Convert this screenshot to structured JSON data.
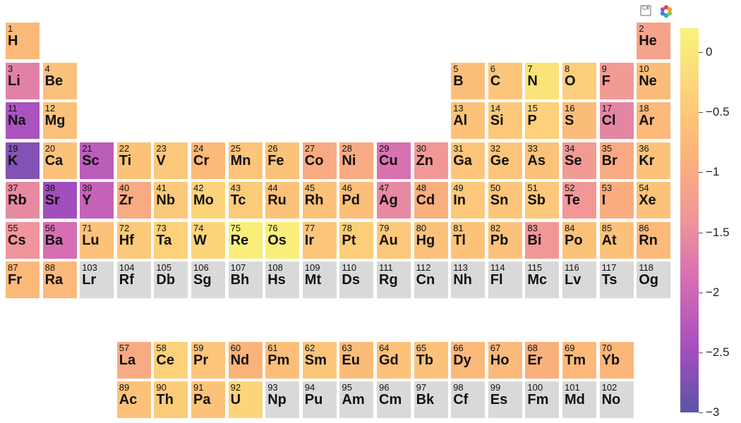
{
  "toolbar": {
    "save_icon": "save-icon",
    "logo_icon": "bokeh-logo-icon"
  },
  "chart_data": {
    "type": "heatmap",
    "title": "",
    "colorbar": {
      "min": -3,
      "max": 0.2,
      "ticks": [
        "0",
        "−0.5",
        "−1",
        "−1.5",
        "−2",
        "−2.5",
        "−3"
      ],
      "tick_values": [
        0,
        -0.5,
        -1,
        -1.5,
        -2,
        -2.5,
        -3
      ],
      "colormap": [
        "#5c53a5",
        "#a44fbf",
        "#d36bb5",
        "#f0959a",
        "#fbb27a",
        "#fcd27a",
        "#f8f47a"
      ]
    },
    "missing_color": "#d9d9d9",
    "elements": [
      {
        "z": 1,
        "sym": "H",
        "group": 1,
        "period": 1,
        "value": -0.75
      },
      {
        "z": 2,
        "sym": "He",
        "group": 18,
        "period": 1,
        "value": -1.15
      },
      {
        "z": 3,
        "sym": "Li",
        "group": 1,
        "period": 2,
        "value": -1.65
      },
      {
        "z": 4,
        "sym": "Be",
        "group": 2,
        "period": 2,
        "value": -0.62
      },
      {
        "z": 5,
        "sym": "B",
        "group": 13,
        "period": 2,
        "value": -0.65
      },
      {
        "z": 6,
        "sym": "C",
        "group": 14,
        "period": 2,
        "value": -0.55
      },
      {
        "z": 7,
        "sym": "N",
        "group": 15,
        "period": 2,
        "value": -0.05
      },
      {
        "z": 8,
        "sym": "O",
        "group": 16,
        "period": 2,
        "value": -0.42
      },
      {
        "z": 9,
        "sym": "F",
        "group": 17,
        "period": 2,
        "value": -1.3
      },
      {
        "z": 10,
        "sym": "Ne",
        "group": 18,
        "period": 2,
        "value": -0.7
      },
      {
        "z": 11,
        "sym": "Na",
        "group": 1,
        "period": 3,
        "value": -2.4
      },
      {
        "z": 12,
        "sym": "Mg",
        "group": 2,
        "period": 3,
        "value": -0.62
      },
      {
        "z": 13,
        "sym": "Al",
        "group": 13,
        "period": 3,
        "value": -0.6
      },
      {
        "z": 14,
        "sym": "Si",
        "group": 14,
        "period": 3,
        "value": -0.5
      },
      {
        "z": 15,
        "sym": "P",
        "group": 15,
        "period": 3,
        "value": -0.35
      },
      {
        "z": 16,
        "sym": "S",
        "group": 16,
        "period": 3,
        "value": -0.7
      },
      {
        "z": 17,
        "sym": "Cl",
        "group": 17,
        "period": 3,
        "value": -1.6
      },
      {
        "z": 18,
        "sym": "Ar",
        "group": 18,
        "period": 3,
        "value": -0.75
      },
      {
        "z": 19,
        "sym": "K",
        "group": 1,
        "period": 4,
        "value": -2.7
      },
      {
        "z": 20,
        "sym": "Ca",
        "group": 2,
        "period": 4,
        "value": -0.6
      },
      {
        "z": 21,
        "sym": "Sc",
        "group": 3,
        "period": 4,
        "value": -2.2
      },
      {
        "z": 22,
        "sym": "Ti",
        "group": 4,
        "period": 4,
        "value": -0.6
      },
      {
        "z": 23,
        "sym": "V",
        "group": 5,
        "period": 4,
        "value": -0.5
      },
      {
        "z": 24,
        "sym": "Cr",
        "group": 6,
        "period": 4,
        "value": -0.75
      },
      {
        "z": 25,
        "sym": "Mn",
        "group": 7,
        "period": 4,
        "value": -0.55
      },
      {
        "z": 26,
        "sym": "Fe",
        "group": 8,
        "period": 4,
        "value": -0.6
      },
      {
        "z": 27,
        "sym": "Co",
        "group": 9,
        "period": 4,
        "value": -1.0
      },
      {
        "z": 28,
        "sym": "Ni",
        "group": 10,
        "period": 4,
        "value": -1.0
      },
      {
        "z": 29,
        "sym": "Cu",
        "group": 11,
        "period": 4,
        "value": -1.85
      },
      {
        "z": 30,
        "sym": "Zn",
        "group": 12,
        "period": 4,
        "value": -1.35
      },
      {
        "z": 31,
        "sym": "Ga",
        "group": 13,
        "period": 4,
        "value": -0.55
      },
      {
        "z": 32,
        "sym": "Ge",
        "group": 14,
        "period": 4,
        "value": -0.55
      },
      {
        "z": 33,
        "sym": "As",
        "group": 15,
        "period": 4,
        "value": -0.6
      },
      {
        "z": 34,
        "sym": "Se",
        "group": 16,
        "period": 4,
        "value": -1.3
      },
      {
        "z": 35,
        "sym": "Br",
        "group": 17,
        "period": 4,
        "value": -1.0
      },
      {
        "z": 36,
        "sym": "Kr",
        "group": 18,
        "period": 4,
        "value": -0.6
      },
      {
        "z": 37,
        "sym": "Rb",
        "group": 1,
        "period": 5,
        "value": -1.55
      },
      {
        "z": 38,
        "sym": "Sr",
        "group": 2,
        "period": 5,
        "value": -2.5
      },
      {
        "z": 39,
        "sym": "Y",
        "group": 3,
        "period": 5,
        "value": -2.1
      },
      {
        "z": 40,
        "sym": "Zr",
        "group": 4,
        "period": 5,
        "value": -1.0
      },
      {
        "z": 41,
        "sym": "Nb",
        "group": 5,
        "period": 5,
        "value": -0.5
      },
      {
        "z": 42,
        "sym": "Mo",
        "group": 6,
        "period": 5,
        "value": -0.3
      },
      {
        "z": 43,
        "sym": "Tc",
        "group": 7,
        "period": 5,
        "value": -0.45
      },
      {
        "z": 44,
        "sym": "Ru",
        "group": 8,
        "period": 5,
        "value": -0.6
      },
      {
        "z": 45,
        "sym": "Rh",
        "group": 9,
        "period": 5,
        "value": -0.6
      },
      {
        "z": 46,
        "sym": "Pd",
        "group": 10,
        "period": 5,
        "value": -0.65
      },
      {
        "z": 47,
        "sym": "Ag",
        "group": 11,
        "period": 5,
        "value": -1.55
      },
      {
        "z": 48,
        "sym": "Cd",
        "group": 12,
        "period": 5,
        "value": -0.9
      },
      {
        "z": 49,
        "sym": "In",
        "group": 13,
        "period": 5,
        "value": -0.5
      },
      {
        "z": 50,
        "sym": "Sn",
        "group": 14,
        "period": 5,
        "value": -0.55
      },
      {
        "z": 51,
        "sym": "Sb",
        "group": 15,
        "period": 5,
        "value": -0.5
      },
      {
        "z": 52,
        "sym": "Te",
        "group": 16,
        "period": 5,
        "value": -1.35
      },
      {
        "z": 53,
        "sym": "I",
        "group": 17,
        "period": 5,
        "value": -0.95
      },
      {
        "z": 54,
        "sym": "Xe",
        "group": 18,
        "period": 5,
        "value": -0.6
      },
      {
        "z": 55,
        "sym": "Cs",
        "group": 1,
        "period": 6,
        "value": -1.4
      },
      {
        "z": 56,
        "sym": "Ba",
        "group": 2,
        "period": 6,
        "value": -1.9
      },
      {
        "z": 71,
        "sym": "Lu",
        "group": 3,
        "period": 6,
        "value": -0.6
      },
      {
        "z": 72,
        "sym": "Hf",
        "group": 4,
        "period": 6,
        "value": -0.5
      },
      {
        "z": 73,
        "sym": "Ta",
        "group": 5,
        "period": 6,
        "value": -0.35
      },
      {
        "z": 74,
        "sym": "W",
        "group": 6,
        "period": 6,
        "value": -0.3
      },
      {
        "z": 75,
        "sym": "Re",
        "group": 7,
        "period": 6,
        "value": 0.1
      },
      {
        "z": 76,
        "sym": "Os",
        "group": 8,
        "period": 6,
        "value": 0.1
      },
      {
        "z": 77,
        "sym": "Ir",
        "group": 9,
        "period": 6,
        "value": -0.55
      },
      {
        "z": 78,
        "sym": "Pt",
        "group": 10,
        "period": 6,
        "value": -0.4
      },
      {
        "z": 79,
        "sym": "Au",
        "group": 11,
        "period": 6,
        "value": -0.5
      },
      {
        "z": 80,
        "sym": "Hg",
        "group": 12,
        "period": 6,
        "value": -0.6
      },
      {
        "z": 81,
        "sym": "Tl",
        "group": 13,
        "period": 6,
        "value": -0.6
      },
      {
        "z": 82,
        "sym": "Pb",
        "group": 14,
        "period": 6,
        "value": -0.6
      },
      {
        "z": 83,
        "sym": "Bi",
        "group": 15,
        "period": 6,
        "value": -1.35
      },
      {
        "z": 84,
        "sym": "Po",
        "group": 16,
        "period": 6,
        "value": -0.6
      },
      {
        "z": 85,
        "sym": "At",
        "group": 17,
        "period": 6,
        "value": -0.6
      },
      {
        "z": 86,
        "sym": "Rn",
        "group": 18,
        "period": 6,
        "value": -0.75
      },
      {
        "z": 87,
        "sym": "Fr",
        "group": 1,
        "period": 7,
        "value": -0.75
      },
      {
        "z": 88,
        "sym": "Ra",
        "group": 2,
        "period": 7,
        "value": -0.75
      },
      {
        "z": 103,
        "sym": "Lr",
        "group": 3,
        "period": 7,
        "value": null
      },
      {
        "z": 104,
        "sym": "Rf",
        "group": 4,
        "period": 7,
        "value": null
      },
      {
        "z": 105,
        "sym": "Db",
        "group": 5,
        "period": 7,
        "value": null
      },
      {
        "z": 106,
        "sym": "Sg",
        "group": 6,
        "period": 7,
        "value": null
      },
      {
        "z": 107,
        "sym": "Bh",
        "group": 7,
        "period": 7,
        "value": null
      },
      {
        "z": 108,
        "sym": "Hs",
        "group": 8,
        "period": 7,
        "value": null
      },
      {
        "z": 109,
        "sym": "Mt",
        "group": 9,
        "period": 7,
        "value": null
      },
      {
        "z": 110,
        "sym": "Ds",
        "group": 10,
        "period": 7,
        "value": null
      },
      {
        "z": 111,
        "sym": "Rg",
        "group": 11,
        "period": 7,
        "value": null
      },
      {
        "z": 112,
        "sym": "Cn",
        "group": 12,
        "period": 7,
        "value": null
      },
      {
        "z": 113,
        "sym": "Nh",
        "group": 13,
        "period": 7,
        "value": null
      },
      {
        "z": 114,
        "sym": "Fl",
        "group": 14,
        "period": 7,
        "value": null
      },
      {
        "z": 115,
        "sym": "Mc",
        "group": 15,
        "period": 7,
        "value": null
      },
      {
        "z": 116,
        "sym": "Lv",
        "group": 16,
        "period": 7,
        "value": null
      },
      {
        "z": 117,
        "sym": "Ts",
        "group": 17,
        "period": 7,
        "value": null
      },
      {
        "z": 118,
        "sym": "Og",
        "group": 18,
        "period": 7,
        "value": null
      },
      {
        "z": 57,
        "sym": "La",
        "group": 4,
        "period": 9,
        "value": -1.0
      },
      {
        "z": 58,
        "sym": "Ce",
        "group": 5,
        "period": 9,
        "value": -0.35
      },
      {
        "z": 59,
        "sym": "Pr",
        "group": 6,
        "period": 9,
        "value": -0.55
      },
      {
        "z": 60,
        "sym": "Nd",
        "group": 7,
        "period": 9,
        "value": -0.85
      },
      {
        "z": 61,
        "sym": "Pm",
        "group": 8,
        "period": 9,
        "value": -0.65
      },
      {
        "z": 62,
        "sym": "Sm",
        "group": 9,
        "period": 9,
        "value": -0.55
      },
      {
        "z": 63,
        "sym": "Eu",
        "group": 10,
        "period": 9,
        "value": -0.7
      },
      {
        "z": 64,
        "sym": "Gd",
        "group": 11,
        "period": 9,
        "value": -0.6
      },
      {
        "z": 65,
        "sym": "Tb",
        "group": 12,
        "period": 9,
        "value": -0.6
      },
      {
        "z": 66,
        "sym": "Dy",
        "group": 13,
        "period": 9,
        "value": -0.75
      },
      {
        "z": 67,
        "sym": "Ho",
        "group": 14,
        "period": 9,
        "value": -0.75
      },
      {
        "z": 68,
        "sym": "Er",
        "group": 15,
        "period": 9,
        "value": -0.9
      },
      {
        "z": 69,
        "sym": "Tm",
        "group": 16,
        "period": 9,
        "value": -0.75
      },
      {
        "z": 70,
        "sym": "Yb",
        "group": 17,
        "period": 9,
        "value": -0.8
      },
      {
        "z": 89,
        "sym": "Ac",
        "group": 4,
        "period": 10,
        "value": -0.6
      },
      {
        "z": 90,
        "sym": "Th",
        "group": 5,
        "period": 10,
        "value": -0.45
      },
      {
        "z": 91,
        "sym": "Pa",
        "group": 6,
        "period": 10,
        "value": -0.6
      },
      {
        "z": 92,
        "sym": "U",
        "group": 7,
        "period": 10,
        "value": -0.3
      },
      {
        "z": 93,
        "sym": "Np",
        "group": 8,
        "period": 10,
        "value": null
      },
      {
        "z": 94,
        "sym": "Pu",
        "group": 9,
        "period": 10,
        "value": null
      },
      {
        "z": 95,
        "sym": "Am",
        "group": 10,
        "period": 10,
        "value": null
      },
      {
        "z": 96,
        "sym": "Cm",
        "group": 11,
        "period": 10,
        "value": null
      },
      {
        "z": 97,
        "sym": "Bk",
        "group": 12,
        "period": 10,
        "value": null
      },
      {
        "z": 98,
        "sym": "Cf",
        "group": 13,
        "period": 10,
        "value": null
      },
      {
        "z": 99,
        "sym": "Es",
        "group": 14,
        "period": 10,
        "value": null
      },
      {
        "z": 100,
        "sym": "Fm",
        "group": 15,
        "period": 10,
        "value": null
      },
      {
        "z": 101,
        "sym": "Md",
        "group": 16,
        "period": 10,
        "value": null
      },
      {
        "z": 102,
        "sym": "No",
        "group": 17,
        "period": 10,
        "value": null
      }
    ]
  }
}
